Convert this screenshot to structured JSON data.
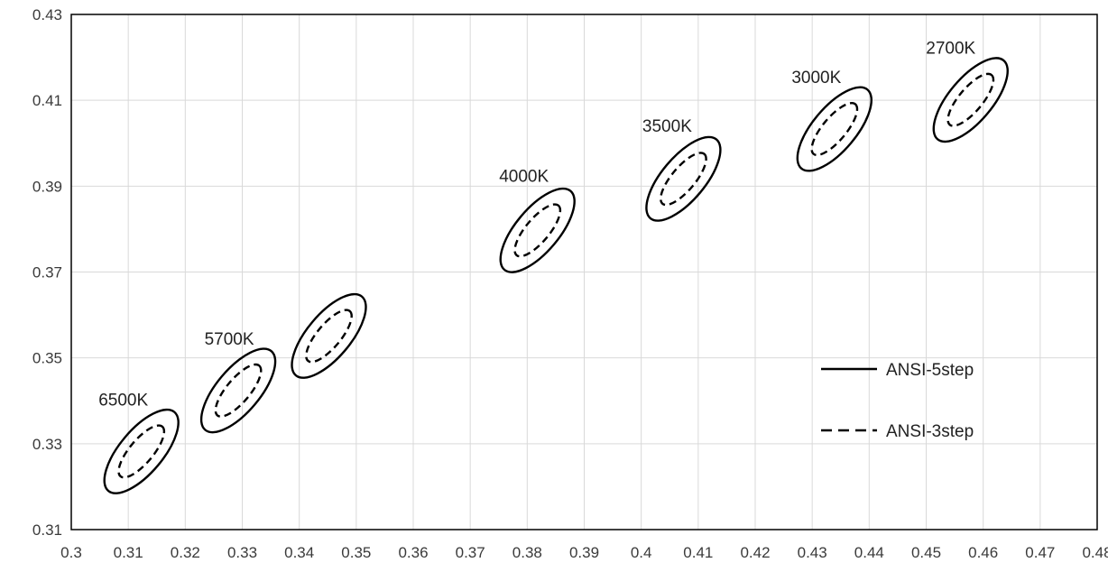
{
  "chart_data": {
    "type": "scatter",
    "title": "",
    "xlabel": "",
    "ylabel": "",
    "xlim": [
      0.3,
      0.48
    ],
    "ylim": [
      0.31,
      0.43
    ],
    "x_ticks": [
      "0.3",
      "0.31",
      "0.32",
      "0.33",
      "0.34",
      "0.35",
      "0.36",
      "0.37",
      "0.38",
      "0.39",
      "0.4",
      "0.41",
      "0.42",
      "0.43",
      "0.44",
      "0.45",
      "0.46",
      "0.47",
      "0.48"
    ],
    "y_ticks": [
      "0.31",
      "0.33",
      "0.35",
      "0.37",
      "0.39",
      "0.41",
      "0.43"
    ],
    "grid": true,
    "legend": {
      "placement": "right",
      "entries": [
        {
          "name": "ANSI-5step",
          "style": "solid"
        },
        {
          "name": "ANSI-3step",
          "style": "dashed"
        }
      ]
    },
    "ellipses": [
      {
        "label": "6500K",
        "x": 0.3123,
        "y": 0.3282
      },
      {
        "label": "5700K",
        "x": 0.3293,
        "y": 0.3424
      },
      {
        "label": "",
        "x": 0.3452,
        "y": 0.3551
      },
      {
        "label": "4000K",
        "x": 0.3818,
        "y": 0.3797
      },
      {
        "label": "3500K",
        "x": 0.4074,
        "y": 0.3917
      },
      {
        "label": "3000K",
        "x": 0.4339,
        "y": 0.4033
      },
      {
        "label": "2700K",
        "x": 0.4578,
        "y": 0.4101
      }
    ],
    "colors": {
      "line": "#000000",
      "grid": "#d9d9d9",
      "axis": "#000000",
      "text": "#3a3a3a"
    }
  }
}
